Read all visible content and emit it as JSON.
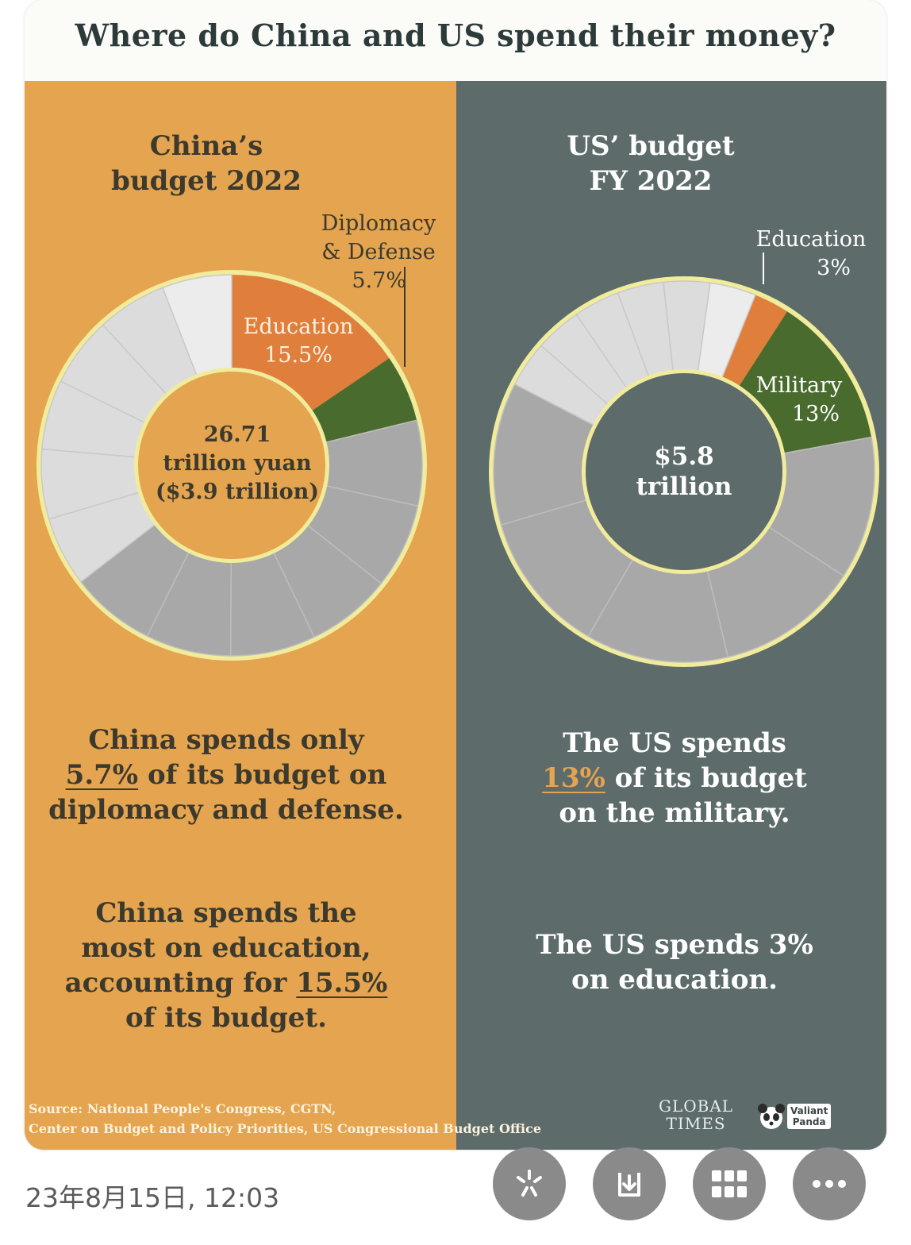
{
  "title": "Where do China and US spend their money?",
  "china": {
    "heading_line1": "China’s",
    "heading_line2": "budget 2022",
    "center_line1": "26.71",
    "center_line2": "trillion yuan",
    "center_line3": "($3.9 trillion)",
    "label_diplomacy_line1": "Diplomacy",
    "label_diplomacy_line2": "& Defense",
    "label_diplomacy_value": "5.7%",
    "label_education": "Education",
    "label_education_value": "15.5%",
    "text1_line1": "China spends only",
    "text1_highlight": "5.7%",
    "text1_after": " of its budget on",
    "text1_line3": "diplomacy and defense.",
    "text2_line1": "China spends the",
    "text2_line2": "most on education,",
    "text2_line3_before": "accounting for ",
    "text2_highlight": "15.5%",
    "text2_line4": "of its budget."
  },
  "us": {
    "heading_line1": "US’ budget",
    "heading_line2": "FY 2022",
    "center_line1": "$5.8",
    "center_line2": "trillion",
    "label_education": "Education",
    "label_education_value": "3%",
    "label_military": "Military",
    "label_military_value": "13%",
    "text1_line1": "The US spends",
    "text1_highlight": "13%",
    "text1_after": " of its budget",
    "text1_line3": "on the military.",
    "text2_line1": "The US spends 3%",
    "text2_line2": "on education."
  },
  "source_line1": "Source: National People's Congress, CGTN,",
  "source_line2": "Center on Budget and Policy Priorities, US Congressional Budget Office",
  "logo_global_line1": "GLOBAL",
  "logo_global_line2": "TIMES",
  "logo_panda_line1": "Valiant",
  "logo_panda_line2": "Panda",
  "timestamp": "23年8月15日, 12:03",
  "actions": [
    {
      "icon": "sparkle-icon"
    },
    {
      "icon": "download-icon"
    },
    {
      "icon": "grid-icon"
    },
    {
      "icon": "more-icon"
    }
  ],
  "colors": {
    "china_panel": "#e5a44f",
    "us_panel": "#5d6b6b",
    "education_orange": "#e07e3c",
    "defense_green": "#496b2e",
    "ring_outline": "#f1ec9c",
    "gray_dark": "#a8a8a8",
    "gray_light": "#dcdcdc"
  },
  "chart_data": [
    {
      "type": "pie",
      "title": "China’s budget 2022",
      "center_label": "26.71 trillion yuan ($3.9 trillion)",
      "slices": [
        {
          "label": "Education",
          "value": 15.5
        },
        {
          "label": "Diplomacy & Defense",
          "value": 5.7
        }
      ]
    },
    {
      "type": "pie",
      "title": "US’ budget FY 2022",
      "center_label": "$5.8 trillion",
      "slices": [
        {
          "label": "Education",
          "value": 3
        },
        {
          "label": "Military",
          "value": 13
        }
      ]
    }
  ]
}
